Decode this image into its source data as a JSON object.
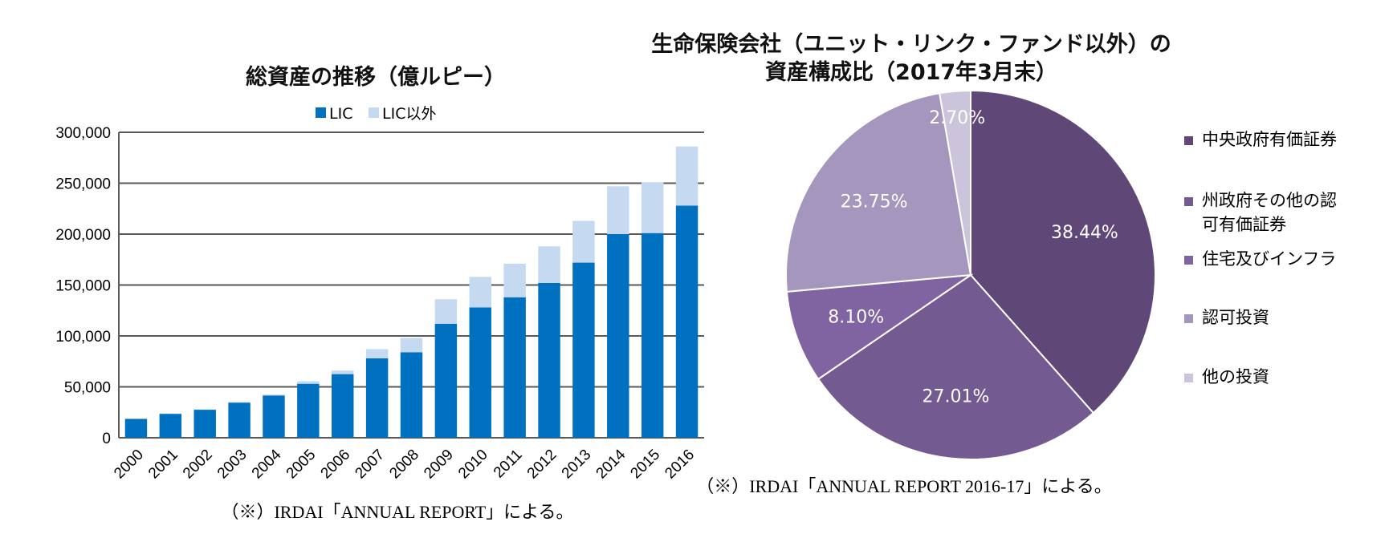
{
  "colors": {
    "lic": "#0070C0",
    "non_lic": "#C5D9F1",
    "pie": [
      "#5F4878",
      "#735A90",
      "#8064A2",
      "#A596BD",
      "#CCC4DA"
    ],
    "grid": "#595959"
  },
  "bar_note": "（※）IRDAI「ANNUAL REPORT」による。",
  "pie_note": "（※）IRDAI「ANNUAL REPORT 2016-17」による。",
  "chart_data": [
    {
      "type": "bar",
      "stacked": true,
      "title": "総資産の推移（億ルピー）",
      "categories": [
        "2000",
        "2001",
        "2002",
        "2003",
        "2004",
        "2005",
        "2006",
        "2007",
        "2008",
        "2009",
        "2010",
        "2011",
        "2012",
        "2013",
        "2014",
        "2015",
        "2016"
      ],
      "series": [
        {
          "name": "LIC",
          "values": [
            18500,
            23500,
            27500,
            34500,
            41500,
            53000,
            62500,
            78000,
            84000,
            112000,
            128000,
            138000,
            152000,
            172000,
            200000,
            201000,
            228000
          ]
        },
        {
          "name": "LIC以外",
          "values": [
            200,
            300,
            500,
            700,
            1000,
            2500,
            3500,
            9000,
            14000,
            24000,
            30000,
            33000,
            36000,
            41000,
            47000,
            50000,
            58000
          ]
        }
      ],
      "ylim": [
        0,
        300000
      ],
      "yticks": [
        "0",
        "50,000",
        "100,000",
        "150,000",
        "200,000",
        "250,000",
        "300,000"
      ],
      "legend_position": "top",
      "grid": true
    },
    {
      "type": "pie",
      "title_lines": [
        "生命保険会社（ユニット・リンク・ファンド以外）の",
        "資産構成比（2017年3月末）"
      ],
      "labels": [
        "中央政府有価証券",
        "州政府その他の認可有価証券",
        "住宅及びインフラ",
        "認可投資",
        "他の投資"
      ],
      "legend_lines": [
        [
          "中央政府有価証券"
        ],
        [
          "州政府その他の認",
          "可有価証券"
        ],
        [
          "住宅及びインフラ"
        ],
        [
          "認可投資"
        ],
        [
          "他の投資"
        ]
      ],
      "values": [
        38.44,
        27.01,
        8.1,
        23.75,
        2.7
      ],
      "value_labels": [
        "38.44%",
        "27.01%",
        "8.10%",
        "23.75%",
        "2.70%"
      ],
      "legend_position": "right"
    }
  ]
}
